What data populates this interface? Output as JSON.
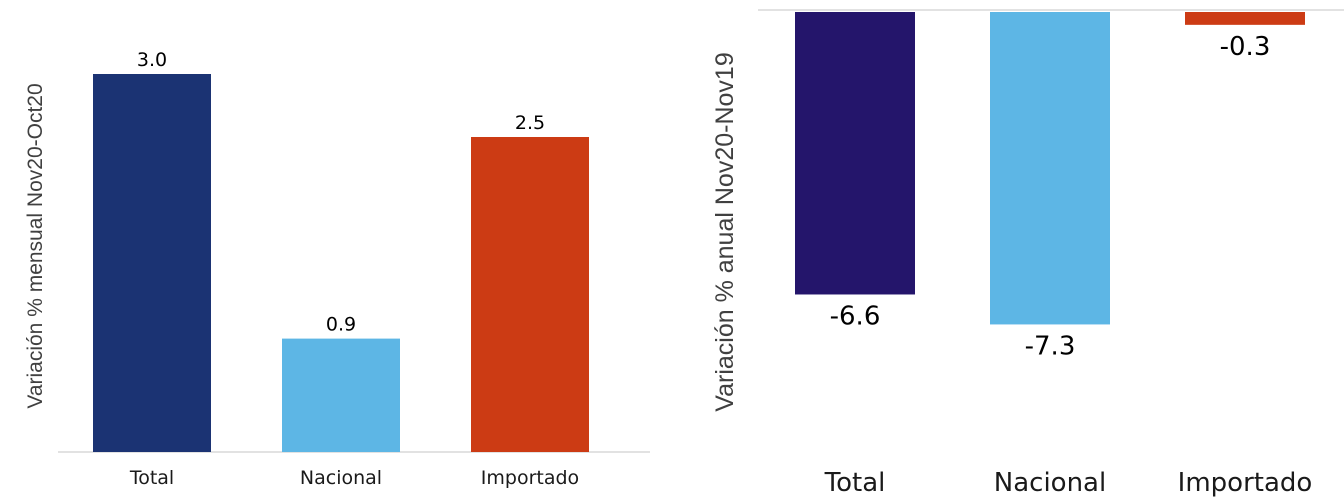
{
  "chart_data": [
    {
      "type": "bar",
      "categories": [
        "Total",
        "Nacional",
        "Importado"
      ],
      "values": [
        3.0,
        0.9,
        2.5
      ],
      "value_labels": [
        "3.0",
        "0.9",
        "2.5"
      ],
      "colors": [
        "#1b3373",
        "#5db6e5",
        "#cc3b14"
      ],
      "ylabel": "Variación % mensual Nov20-Oct20",
      "ylim": [
        0,
        3.3
      ],
      "grid": false,
      "legend": "none"
    },
    {
      "type": "bar",
      "categories": [
        "Total",
        "Nacional",
        "Importado"
      ],
      "values": [
        -6.6,
        -7.3,
        -0.3
      ],
      "value_labels": [
        "-6.6",
        "-7.3",
        "-0.3"
      ],
      "colors": [
        "#24156b",
        "#5db6e5",
        "#cc3b14"
      ],
      "ylabel": "Variación % anual Nov20-Nov19",
      "ylim": [
        -9.3,
        0
      ],
      "grid": false,
      "legend": "none"
    }
  ]
}
